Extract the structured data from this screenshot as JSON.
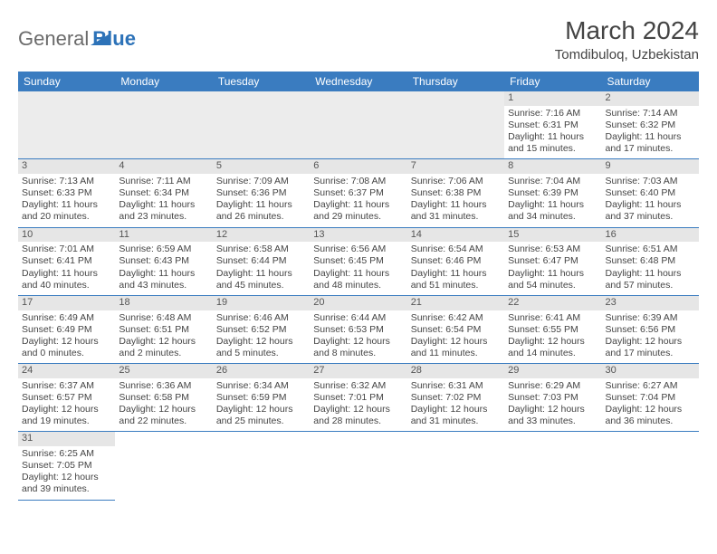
{
  "brand": {
    "part1": "General",
    "part2": "Blue",
    "triangle_color": "#2c72b8"
  },
  "title": "March 2024",
  "location": "Tomdibuloq, Uzbekistan",
  "colors": {
    "header_bg": "#3a7cc0",
    "daynum_bg": "#e6e6e6",
    "text": "#444444"
  },
  "weekdays": [
    "Sunday",
    "Monday",
    "Tuesday",
    "Wednesday",
    "Thursday",
    "Friday",
    "Saturday"
  ],
  "weeks": [
    [
      null,
      null,
      null,
      null,
      null,
      {
        "n": "1",
        "sunrise": "Sunrise: 7:16 AM",
        "sunset": "Sunset: 6:31 PM",
        "dl1": "Daylight: 11 hours",
        "dl2": "and 15 minutes."
      },
      {
        "n": "2",
        "sunrise": "Sunrise: 7:14 AM",
        "sunset": "Sunset: 6:32 PM",
        "dl1": "Daylight: 11 hours",
        "dl2": "and 17 minutes."
      }
    ],
    [
      {
        "n": "3",
        "sunrise": "Sunrise: 7:13 AM",
        "sunset": "Sunset: 6:33 PM",
        "dl1": "Daylight: 11 hours",
        "dl2": "and 20 minutes."
      },
      {
        "n": "4",
        "sunrise": "Sunrise: 7:11 AM",
        "sunset": "Sunset: 6:34 PM",
        "dl1": "Daylight: 11 hours",
        "dl2": "and 23 minutes."
      },
      {
        "n": "5",
        "sunrise": "Sunrise: 7:09 AM",
        "sunset": "Sunset: 6:36 PM",
        "dl1": "Daylight: 11 hours",
        "dl2": "and 26 minutes."
      },
      {
        "n": "6",
        "sunrise": "Sunrise: 7:08 AM",
        "sunset": "Sunset: 6:37 PM",
        "dl1": "Daylight: 11 hours",
        "dl2": "and 29 minutes."
      },
      {
        "n": "7",
        "sunrise": "Sunrise: 7:06 AM",
        "sunset": "Sunset: 6:38 PM",
        "dl1": "Daylight: 11 hours",
        "dl2": "and 31 minutes."
      },
      {
        "n": "8",
        "sunrise": "Sunrise: 7:04 AM",
        "sunset": "Sunset: 6:39 PM",
        "dl1": "Daylight: 11 hours",
        "dl2": "and 34 minutes."
      },
      {
        "n": "9",
        "sunrise": "Sunrise: 7:03 AM",
        "sunset": "Sunset: 6:40 PM",
        "dl1": "Daylight: 11 hours",
        "dl2": "and 37 minutes."
      }
    ],
    [
      {
        "n": "10",
        "sunrise": "Sunrise: 7:01 AM",
        "sunset": "Sunset: 6:41 PM",
        "dl1": "Daylight: 11 hours",
        "dl2": "and 40 minutes."
      },
      {
        "n": "11",
        "sunrise": "Sunrise: 6:59 AM",
        "sunset": "Sunset: 6:43 PM",
        "dl1": "Daylight: 11 hours",
        "dl2": "and 43 minutes."
      },
      {
        "n": "12",
        "sunrise": "Sunrise: 6:58 AM",
        "sunset": "Sunset: 6:44 PM",
        "dl1": "Daylight: 11 hours",
        "dl2": "and 45 minutes."
      },
      {
        "n": "13",
        "sunrise": "Sunrise: 6:56 AM",
        "sunset": "Sunset: 6:45 PM",
        "dl1": "Daylight: 11 hours",
        "dl2": "and 48 minutes."
      },
      {
        "n": "14",
        "sunrise": "Sunrise: 6:54 AM",
        "sunset": "Sunset: 6:46 PM",
        "dl1": "Daylight: 11 hours",
        "dl2": "and 51 minutes."
      },
      {
        "n": "15",
        "sunrise": "Sunrise: 6:53 AM",
        "sunset": "Sunset: 6:47 PM",
        "dl1": "Daylight: 11 hours",
        "dl2": "and 54 minutes."
      },
      {
        "n": "16",
        "sunrise": "Sunrise: 6:51 AM",
        "sunset": "Sunset: 6:48 PM",
        "dl1": "Daylight: 11 hours",
        "dl2": "and 57 minutes."
      }
    ],
    [
      {
        "n": "17",
        "sunrise": "Sunrise: 6:49 AM",
        "sunset": "Sunset: 6:49 PM",
        "dl1": "Daylight: 12 hours",
        "dl2": "and 0 minutes."
      },
      {
        "n": "18",
        "sunrise": "Sunrise: 6:48 AM",
        "sunset": "Sunset: 6:51 PM",
        "dl1": "Daylight: 12 hours",
        "dl2": "and 2 minutes."
      },
      {
        "n": "19",
        "sunrise": "Sunrise: 6:46 AM",
        "sunset": "Sunset: 6:52 PM",
        "dl1": "Daylight: 12 hours",
        "dl2": "and 5 minutes."
      },
      {
        "n": "20",
        "sunrise": "Sunrise: 6:44 AM",
        "sunset": "Sunset: 6:53 PM",
        "dl1": "Daylight: 12 hours",
        "dl2": "and 8 minutes."
      },
      {
        "n": "21",
        "sunrise": "Sunrise: 6:42 AM",
        "sunset": "Sunset: 6:54 PM",
        "dl1": "Daylight: 12 hours",
        "dl2": "and 11 minutes."
      },
      {
        "n": "22",
        "sunrise": "Sunrise: 6:41 AM",
        "sunset": "Sunset: 6:55 PM",
        "dl1": "Daylight: 12 hours",
        "dl2": "and 14 minutes."
      },
      {
        "n": "23",
        "sunrise": "Sunrise: 6:39 AM",
        "sunset": "Sunset: 6:56 PM",
        "dl1": "Daylight: 12 hours",
        "dl2": "and 17 minutes."
      }
    ],
    [
      {
        "n": "24",
        "sunrise": "Sunrise: 6:37 AM",
        "sunset": "Sunset: 6:57 PM",
        "dl1": "Daylight: 12 hours",
        "dl2": "and 19 minutes."
      },
      {
        "n": "25",
        "sunrise": "Sunrise: 6:36 AM",
        "sunset": "Sunset: 6:58 PM",
        "dl1": "Daylight: 12 hours",
        "dl2": "and 22 minutes."
      },
      {
        "n": "26",
        "sunrise": "Sunrise: 6:34 AM",
        "sunset": "Sunset: 6:59 PM",
        "dl1": "Daylight: 12 hours",
        "dl2": "and 25 minutes."
      },
      {
        "n": "27",
        "sunrise": "Sunrise: 6:32 AM",
        "sunset": "Sunset: 7:01 PM",
        "dl1": "Daylight: 12 hours",
        "dl2": "and 28 minutes."
      },
      {
        "n": "28",
        "sunrise": "Sunrise: 6:31 AM",
        "sunset": "Sunset: 7:02 PM",
        "dl1": "Daylight: 12 hours",
        "dl2": "and 31 minutes."
      },
      {
        "n": "29",
        "sunrise": "Sunrise: 6:29 AM",
        "sunset": "Sunset: 7:03 PM",
        "dl1": "Daylight: 12 hours",
        "dl2": "and 33 minutes."
      },
      {
        "n": "30",
        "sunrise": "Sunrise: 6:27 AM",
        "sunset": "Sunset: 7:04 PM",
        "dl1": "Daylight: 12 hours",
        "dl2": "and 36 minutes."
      }
    ],
    [
      {
        "n": "31",
        "sunrise": "Sunrise: 6:25 AM",
        "sunset": "Sunset: 7:05 PM",
        "dl1": "Daylight: 12 hours",
        "dl2": "and 39 minutes."
      },
      null,
      null,
      null,
      null,
      null,
      null
    ]
  ]
}
